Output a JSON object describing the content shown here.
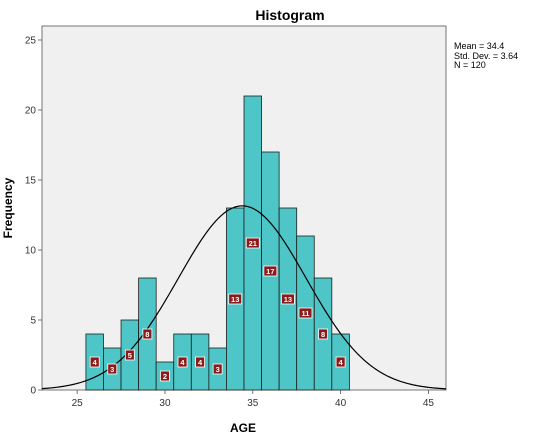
{
  "chart_data": {
    "type": "bar",
    "title": "Histogram",
    "xlabel": "AGE",
    "ylabel": "Frequency",
    "xlim": [
      23,
      46
    ],
    "ylim": [
      0,
      26
    ],
    "x_ticks": [
      25,
      30,
      35,
      40,
      45
    ],
    "y_ticks": [
      0,
      5,
      10,
      15,
      20,
      25
    ],
    "bin_width": 1,
    "bins": [
      {
        "left": 25.5,
        "right": 26.5,
        "count": 4
      },
      {
        "left": 26.5,
        "right": 27.5,
        "count": 3
      },
      {
        "left": 27.5,
        "right": 28.5,
        "count": 5
      },
      {
        "left": 28.5,
        "right": 29.5,
        "count": 8
      },
      {
        "left": 29.5,
        "right": 30.5,
        "count": 2
      },
      {
        "left": 30.5,
        "right": 31.5,
        "count": 4
      },
      {
        "left": 31.5,
        "right": 32.5,
        "count": 4
      },
      {
        "left": 32.5,
        "right": 33.5,
        "count": 3
      },
      {
        "left": 33.5,
        "right": 34.5,
        "count": 13
      },
      {
        "left": 34.5,
        "right": 35.5,
        "count": 21
      },
      {
        "left": 35.5,
        "right": 36.5,
        "count": 17
      },
      {
        "left": 36.5,
        "right": 37.5,
        "count": 13
      },
      {
        "left": 37.5,
        "right": 38.5,
        "count": 11
      },
      {
        "left": 38.5,
        "right": 39.5,
        "count": 8
      },
      {
        "left": 39.5,
        "right": 40.5,
        "count": 4
      }
    ],
    "normal_curve": {
      "mean": 34.4,
      "std_dev": 3.64,
      "n": 120
    },
    "stats_text": {
      "mean": "Mean = 34.4",
      "std_dev": "Std. Dev. = 3.64",
      "n": "N = 120"
    },
    "grid": false,
    "colors": {
      "bar_fill": "#4ec5c6",
      "bar_stroke": "#1f1f1f",
      "plot_bg": "#f0f0f0",
      "label_box": "#8b1a1a",
      "label_text": "#ffffff",
      "curve": "#000000"
    }
  }
}
